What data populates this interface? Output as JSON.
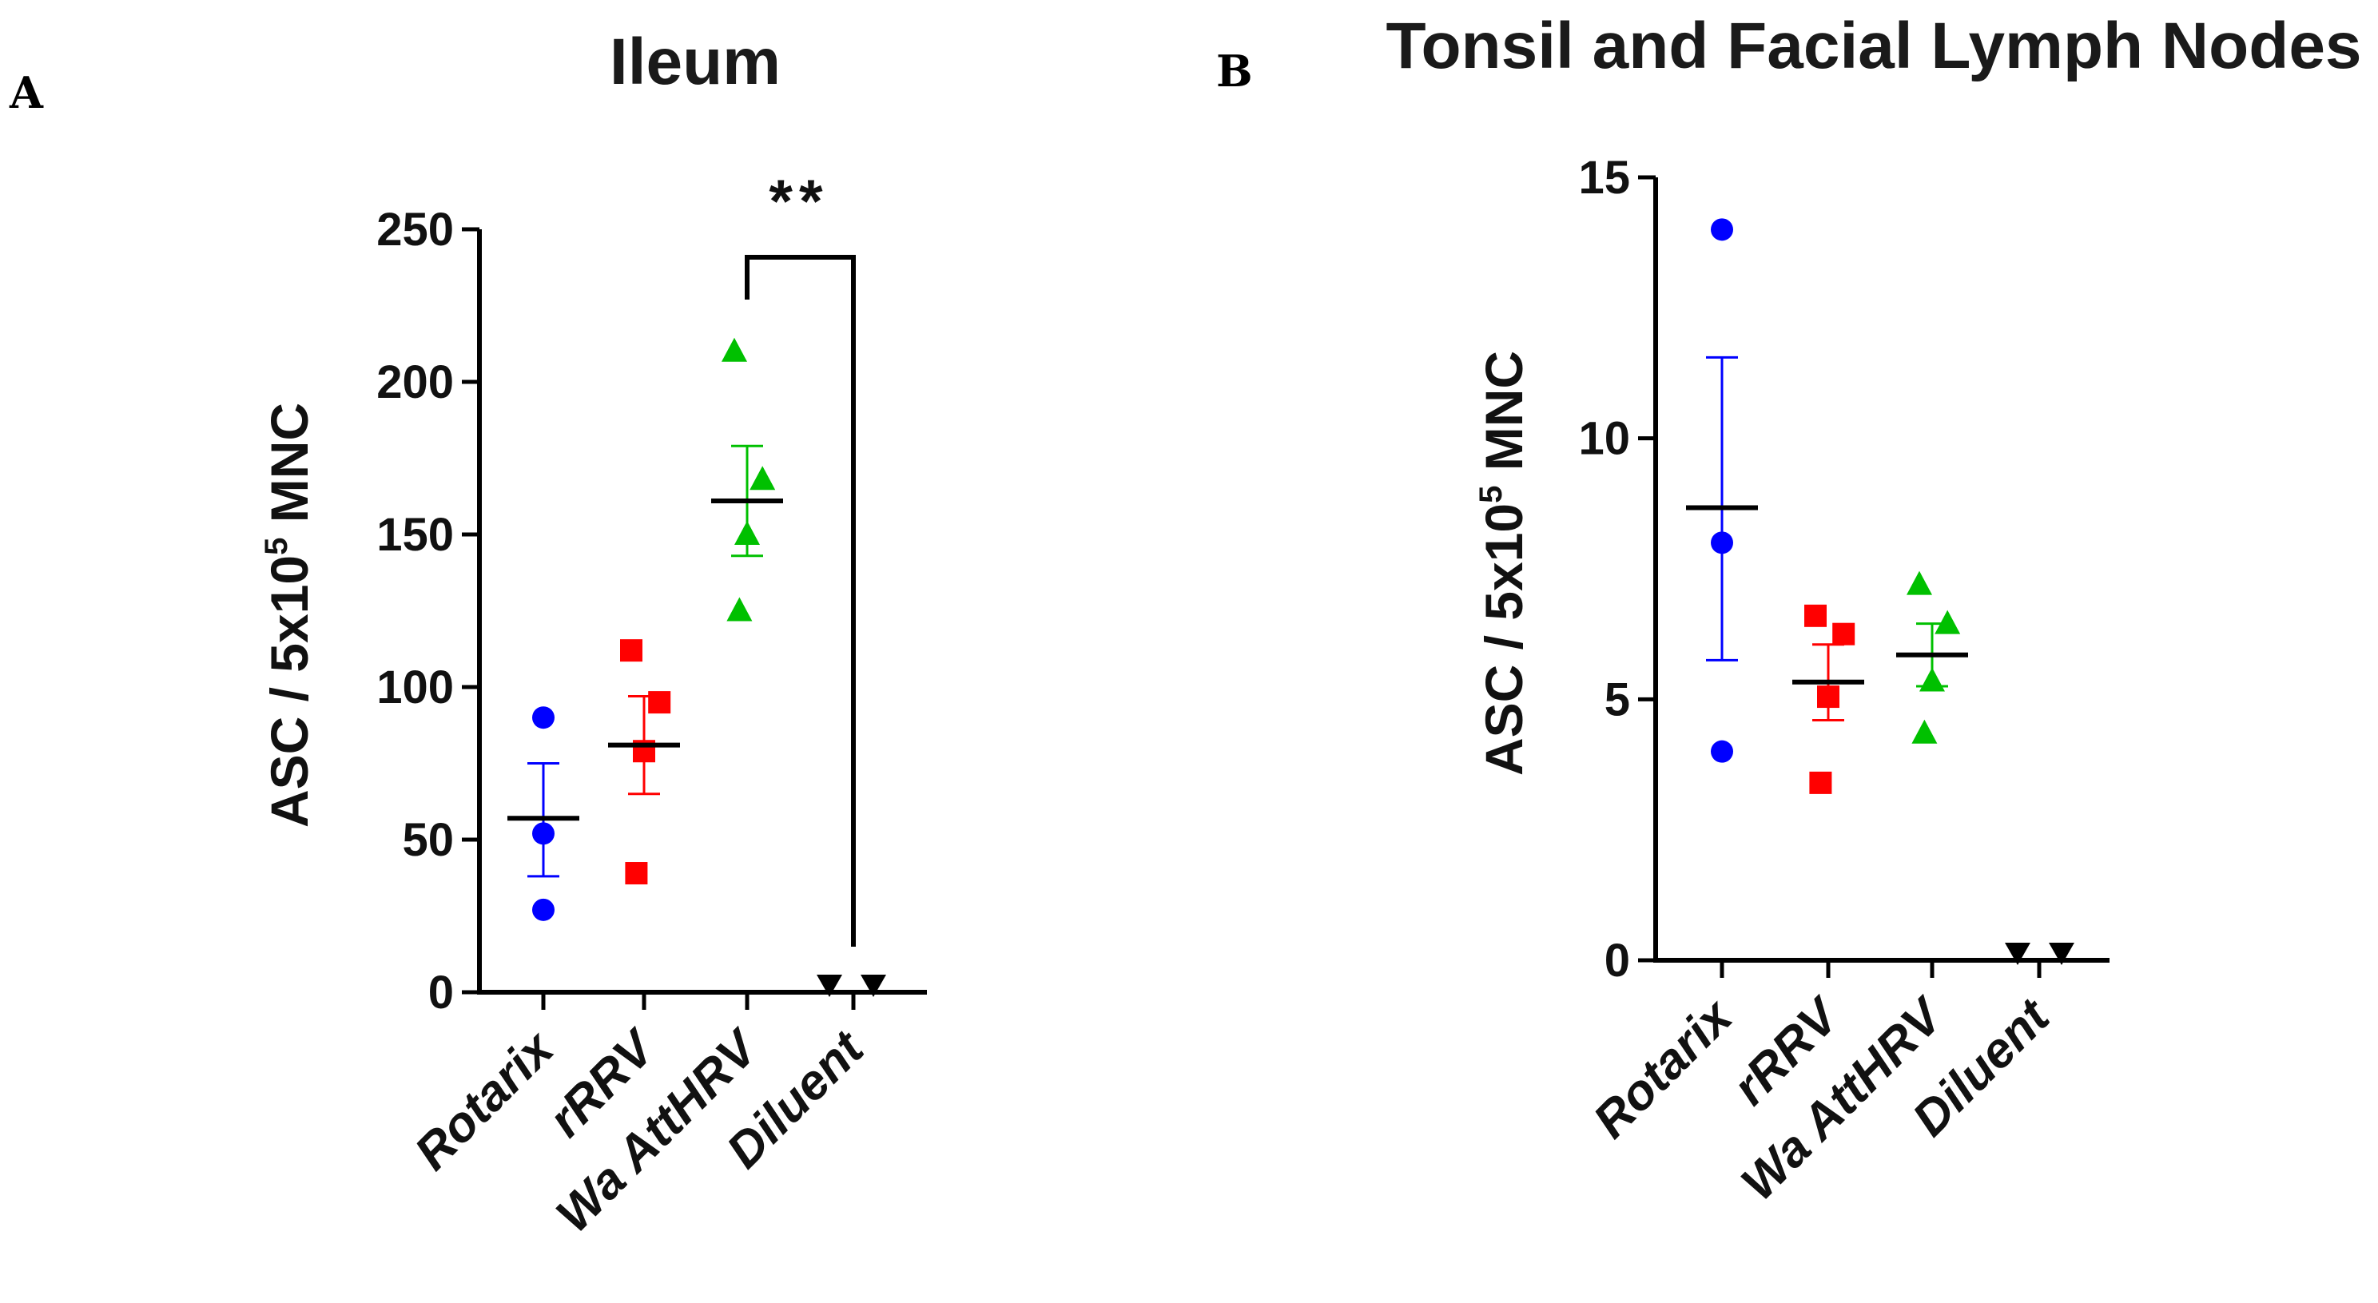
{
  "chart_data": [
    {
      "panel": "A",
      "type": "scatter",
      "title": "Ileum",
      "ylabel": "ASC / 5x10",
      "ylabel_sup": "5",
      "ylabel_suffix": " MNC",
      "ylim": [
        0,
        250
      ],
      "yticks": [
        0,
        50,
        100,
        150,
        200,
        250
      ],
      "categories": [
        "Rotarix",
        "rRRV",
        "Wa AttHRV",
        "Diluent"
      ],
      "series": [
        {
          "name": "Rotarix",
          "color": "#0000ff",
          "marker": "circle",
          "values": [
            90,
            52,
            27
          ],
          "mean": 57,
          "sem_low": 38,
          "sem_high": 75
        },
        {
          "name": "rRRV",
          "color": "#ff0000",
          "marker": "square",
          "values": [
            112,
            95,
            79,
            39
          ],
          "mean": 81,
          "sem_low": 65,
          "sem_high": 97
        },
        {
          "name": "Wa AttHRV",
          "color": "#00c000",
          "marker": "triangle-up",
          "values": [
            210,
            168,
            150,
            125
          ],
          "mean": 161,
          "sem_low": 143,
          "sem_high": 179
        },
        {
          "name": "Diluent",
          "color": "#000000",
          "marker": "triangle-down",
          "values": [
            0,
            0
          ],
          "mean": 0,
          "sem_low": 0,
          "sem_high": 0
        }
      ],
      "significance": {
        "from": "Wa AttHRV",
        "to": "Diluent",
        "label": "**"
      }
    },
    {
      "panel": "B",
      "type": "scatter",
      "title": "Tonsil and Facial Lymph Nodes",
      "ylabel": "ASC / 5x10",
      "ylabel_sup": "5",
      "ylabel_suffix": " MNC",
      "ylim": [
        0,
        15
      ],
      "yticks": [
        0,
        5,
        10,
        15
      ],
      "categories": [
        "Rotarix",
        "rRRV",
        "Wa AttHRV",
        "Diluent"
      ],
      "series": [
        {
          "name": "Rotarix",
          "color": "#0000ff",
          "marker": "circle",
          "values": [
            14,
            8,
            4
          ],
          "mean": 8.67,
          "sem_low": 5.75,
          "sem_high": 11.55
        },
        {
          "name": "rRRV",
          "color": "#ff0000",
          "marker": "square",
          "values": [
            6.6,
            6.25,
            5.05,
            3.4
          ],
          "mean": 5.33,
          "sem_low": 4.6,
          "sem_high": 6.05
        },
        {
          "name": "Wa AttHRV",
          "color": "#00c000",
          "marker": "triangle-up",
          "values": [
            7.2,
            6.45,
            5.35,
            4.35
          ],
          "mean": 5.85,
          "sem_low": 5.25,
          "sem_high": 6.45
        },
        {
          "name": "Diluent",
          "color": "#000000",
          "marker": "triangle-down",
          "values": [
            0,
            0
          ],
          "mean": 0,
          "sem_low": 0,
          "sem_high": 0
        }
      ]
    }
  ]
}
